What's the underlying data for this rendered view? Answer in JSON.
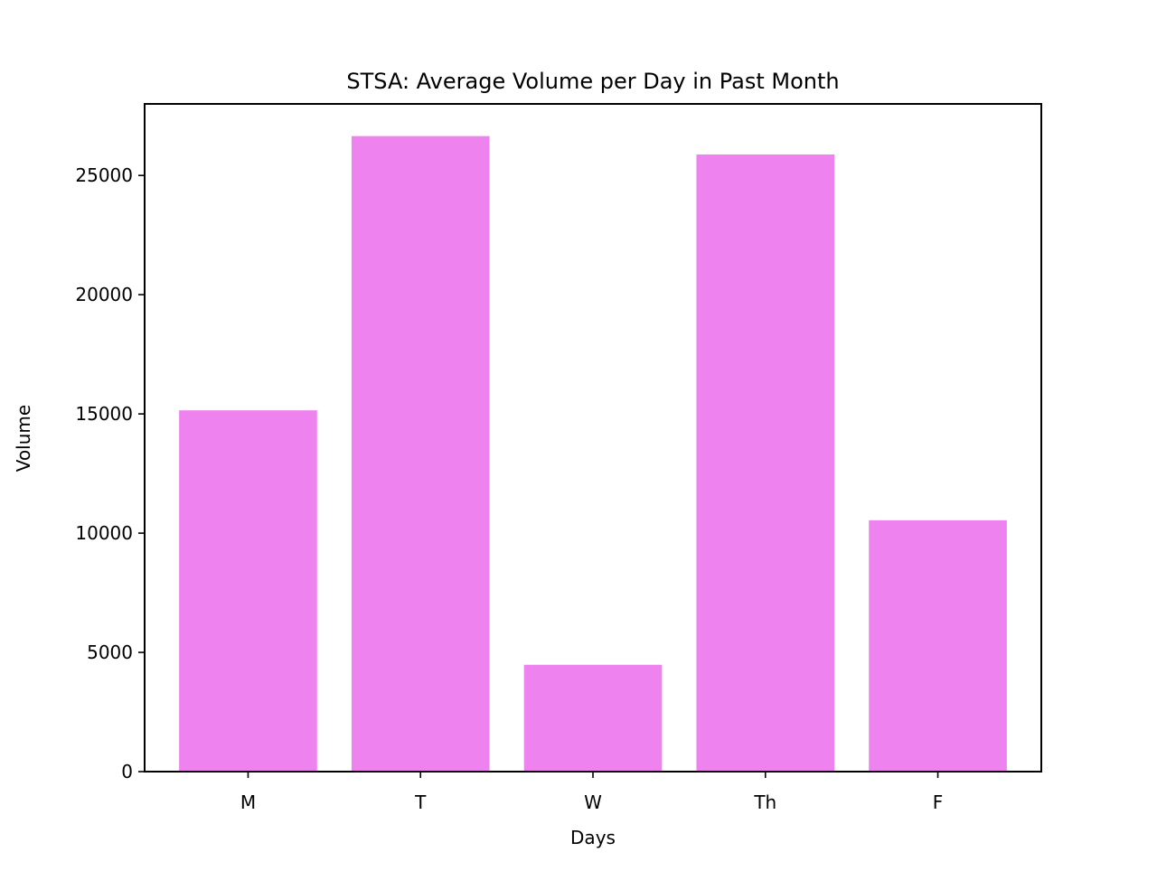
{
  "chart_data": {
    "type": "bar",
    "title": "STSA: Average Volume per Day in Past Month",
    "xlabel": "Days",
    "ylabel": "Volume",
    "categories": [
      "M",
      "T",
      "W",
      "Th",
      "F"
    ],
    "values": [
      15150,
      26650,
      4480,
      25880,
      10540
    ],
    "ylim": [
      0,
      28000
    ],
    "yticks": [
      0,
      5000,
      10000,
      15000,
      20000,
      25000
    ],
    "ytick_labels": [
      "0",
      "5000",
      "10000",
      "15000",
      "20000",
      "25000"
    ],
    "bar_color": "#ee82ee",
    "grid": false,
    "legend": "none"
  }
}
